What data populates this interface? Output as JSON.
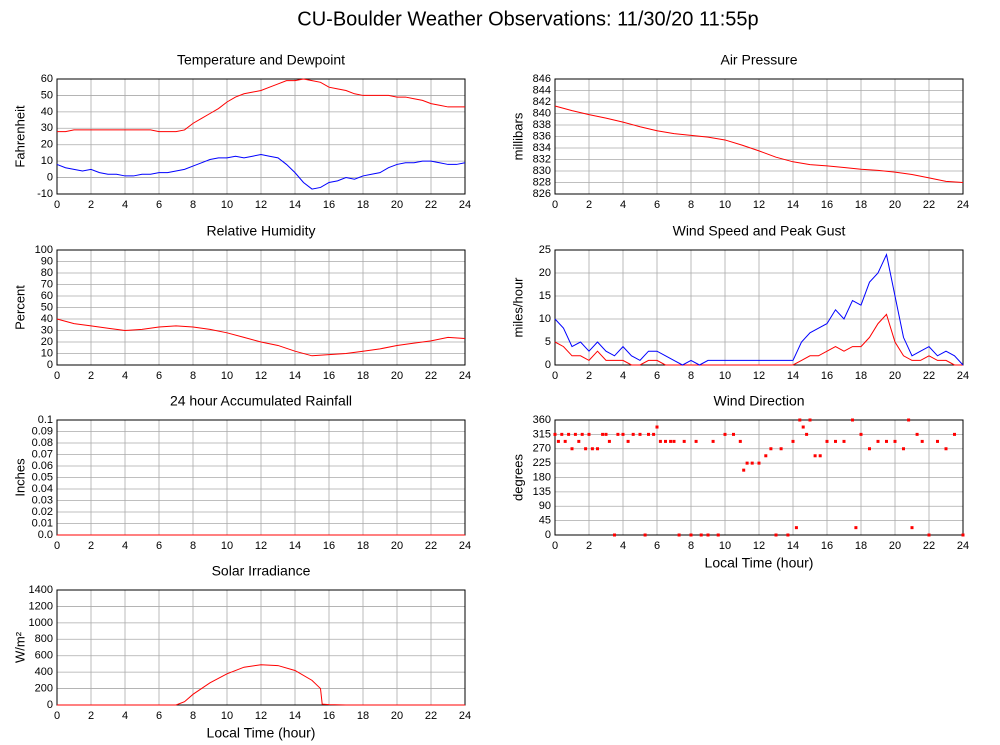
{
  "title": "CU-Boulder Weather Observations: 11/30/20 11:55p",
  "chart_data": [
    {
      "type": "line",
      "title": "Temperature and Dewpoint",
      "ylabel": "Fahrenheit",
      "x": [
        0,
        0.5,
        1,
        1.5,
        2,
        2.5,
        3,
        3.5,
        4,
        4.5,
        5,
        5.5,
        6,
        6.5,
        7,
        7.5,
        8,
        8.5,
        9,
        9.5,
        10,
        10.5,
        11,
        11.5,
        12,
        12.5,
        13,
        13.5,
        14,
        14.5,
        15,
        15.5,
        16,
        16.5,
        17,
        17.5,
        18,
        18.5,
        19,
        19.5,
        20,
        20.5,
        21,
        21.5,
        22,
        22.5,
        23,
        23.5,
        24
      ],
      "series": [
        {
          "color": "#ff0000",
          "values": [
            28,
            28,
            29,
            29,
            29,
            29,
            29,
            29,
            29,
            29,
            29,
            29,
            28,
            28,
            28,
            29,
            33,
            36,
            39,
            42,
            46,
            49,
            51,
            52,
            53,
            55,
            57,
            59,
            59,
            60,
            59,
            58,
            55,
            54,
            53,
            51,
            50,
            50,
            50,
            50,
            49,
            49,
            48,
            47,
            45,
            44,
            43,
            43,
            43
          ]
        },
        {
          "color": "#0000ff",
          "values": [
            8,
            6,
            5,
            4,
            5,
            3,
            2,
            2,
            1,
            1,
            2,
            2,
            3,
            3,
            4,
            5,
            7,
            9,
            11,
            12,
            12,
            13,
            12,
            13,
            14,
            13,
            12,
            8,
            3,
            -3,
            -7,
            -6,
            -3,
            -2,
            0,
            -1,
            1,
            2,
            3,
            6,
            8,
            9,
            9,
            10,
            10,
            9,
            8,
            8,
            9
          ]
        }
      ],
      "xlim": [
        0,
        24
      ],
      "xticks": [
        0,
        2,
        4,
        6,
        8,
        10,
        12,
        14,
        16,
        18,
        20,
        22,
        24
      ],
      "ylim": [
        -10,
        60
      ],
      "yticks": [
        -10,
        0,
        10,
        20,
        30,
        40,
        50,
        60
      ],
      "grid": true
    },
    {
      "type": "line",
      "title": "Air Pressure",
      "ylabel": "millibars",
      "x": [
        0,
        1,
        2,
        3,
        4,
        5,
        6,
        7,
        8,
        9,
        10,
        11,
        12,
        13,
        14,
        15,
        16,
        17,
        18,
        19,
        20,
        21,
        22,
        23,
        24
      ],
      "series": [
        {
          "color": "#ff0000",
          "values": [
            841.3,
            840.5,
            839.8,
            839.2,
            838.5,
            837.7,
            837,
            836.5,
            836.2,
            835.9,
            835.4,
            834.5,
            833.5,
            832.4,
            831.6,
            831.1,
            830.9,
            830.6,
            830.3,
            830.1,
            829.8,
            829.4,
            828.8,
            828.2,
            828
          ]
        }
      ],
      "xlim": [
        0,
        24
      ],
      "xticks": [
        0,
        2,
        4,
        6,
        8,
        10,
        12,
        14,
        16,
        18,
        20,
        22,
        24
      ],
      "ylim": [
        826,
        846
      ],
      "yticks": [
        826,
        828,
        830,
        832,
        834,
        836,
        838,
        840,
        842,
        844,
        846
      ],
      "grid": true
    },
    {
      "type": "line",
      "title": "Relative Humidity",
      "ylabel": "Percent",
      "x": [
        0,
        1,
        2,
        3,
        4,
        5,
        6,
        7,
        8,
        9,
        10,
        11,
        12,
        13,
        14,
        15,
        16,
        17,
        18,
        19,
        20,
        21,
        22,
        23,
        24
      ],
      "series": [
        {
          "color": "#ff0000",
          "values": [
            40,
            36,
            34,
            32,
            30,
            31,
            33,
            34,
            33,
            31,
            28,
            24,
            20,
            17,
            12,
            8,
            9,
            10,
            12,
            14,
            17,
            19,
            21,
            24,
            23
          ]
        }
      ],
      "xlim": [
        0,
        24
      ],
      "xticks": [
        0,
        2,
        4,
        6,
        8,
        10,
        12,
        14,
        16,
        18,
        20,
        22,
        24
      ],
      "ylim": [
        0,
        100
      ],
      "yticks": [
        0,
        10,
        20,
        30,
        40,
        50,
        60,
        70,
        80,
        90,
        100
      ],
      "grid": true
    },
    {
      "type": "line",
      "title": "Wind Speed and Peak Gust",
      "ylabel": "miles/hour",
      "x": [
        0,
        0.5,
        1,
        1.5,
        2,
        2.5,
        3,
        3.5,
        4,
        4.5,
        5,
        5.5,
        6,
        6.5,
        7,
        7.5,
        8,
        8.5,
        9,
        9.5,
        10,
        10.5,
        11,
        11.5,
        12,
        12.5,
        13,
        13.5,
        14,
        14.5,
        15,
        15.5,
        16,
        16.5,
        17,
        17.5,
        18,
        18.5,
        19,
        19.5,
        20,
        20.5,
        21,
        21.5,
        22,
        22.5,
        23,
        23.5,
        24
      ],
      "series": [
        {
          "color": "#ff0000",
          "values": [
            5,
            4,
            2,
            2,
            1,
            3,
            1,
            1,
            1,
            0,
            0,
            1,
            1,
            0,
            0,
            0,
            0,
            0,
            0,
            0,
            0,
            0,
            0,
            0,
            0,
            0,
            0,
            0,
            0,
            1,
            2,
            2,
            3,
            4,
            3,
            4,
            4,
            6,
            9,
            11,
            5,
            2,
            1,
            1,
            2,
            1,
            1,
            0,
            0
          ]
        },
        {
          "color": "#0000ff",
          "values": [
            10,
            8,
            4,
            5,
            3,
            5,
            3,
            2,
            4,
            2,
            1,
            3,
            3,
            2,
            1,
            0,
            1,
            0,
            1,
            1,
            1,
            1,
            1,
            1,
            1,
            1,
            1,
            1,
            1,
            5,
            7,
            8,
            9,
            12,
            10,
            14,
            13,
            18,
            20,
            24,
            15,
            6,
            2,
            3,
            4,
            2,
            3,
            2,
            0
          ]
        }
      ],
      "xlim": [
        0,
        24
      ],
      "xticks": [
        0,
        2,
        4,
        6,
        8,
        10,
        12,
        14,
        16,
        18,
        20,
        22,
        24
      ],
      "ylim": [
        0,
        25
      ],
      "yticks": [
        0,
        5,
        10,
        15,
        20,
        25
      ],
      "grid": true
    },
    {
      "type": "line",
      "title": "24 hour Accumulated Rainfall",
      "ylabel": "Inches",
      "x": [
        0,
        24
      ],
      "series": [
        {
          "color": "#ff0000",
          "values": [
            0,
            0
          ]
        }
      ],
      "xlim": [
        0,
        24
      ],
      "xticks": [
        0,
        2,
        4,
        6,
        8,
        10,
        12,
        14,
        16,
        18,
        20,
        22,
        24
      ],
      "ylim": [
        0,
        0.1
      ],
      "yticks": [
        {
          "value": 0,
          "label": "0.0"
        },
        0.01,
        0.02,
        0.03,
        0.04,
        0.05,
        0.06,
        0.07,
        0.08,
        0.09,
        0.1
      ],
      "grid": true
    },
    {
      "type": "scatter",
      "title": "Wind Direction",
      "ylabel": "degrees",
      "xlabel": "Local Time (hour)",
      "x": [
        0,
        0.2,
        0.4,
        0.6,
        0.8,
        1,
        1.2,
        1.4,
        1.6,
        1.8,
        2,
        2.2,
        2.5,
        2.8,
        3,
        3.2,
        3.5,
        3.7,
        4,
        4.3,
        4.6,
        5,
        5.3,
        5.5,
        5.8,
        6,
        6.2,
        6.5,
        6.8,
        7,
        7.3,
        7.6,
        8,
        8.3,
        8.6,
        9,
        9.3,
        9.6,
        10,
        10.5,
        10.9,
        11.1,
        11.3,
        11.6,
        12,
        12.4,
        12.7,
        13,
        13.3,
        13.7,
        14,
        14.2,
        14.4,
        14.6,
        14.8,
        15,
        15.3,
        15.6,
        16,
        16.5,
        17,
        17.5,
        17.7,
        18,
        18.5,
        19,
        19.5,
        20,
        20.5,
        20.8,
        21,
        21.3,
        21.6,
        22,
        22.5,
        23,
        23.5,
        24
      ],
      "series": [
        {
          "color": "#ff0000",
          "values": [
            315,
            293,
            315,
            293,
            315,
            270,
            315,
            293,
            315,
            270,
            315,
            270,
            270,
            315,
            315,
            293,
            0,
            315,
            315,
            293,
            315,
            315,
            0,
            315,
            315,
            338,
            293,
            293,
            293,
            293,
            0,
            293,
            0,
            293,
            0,
            0,
            293,
            0,
            315,
            315,
            293,
            203,
            225,
            225,
            225,
            248,
            270,
            0,
            270,
            0,
            293,
            23,
            360,
            338,
            315,
            360,
            248,
            248,
            293,
            293,
            293,
            360,
            23,
            315,
            270,
            293,
            293,
            293,
            270,
            360,
            23,
            315,
            293,
            0,
            293,
            270,
            315,
            0
          ]
        }
      ],
      "xlim": [
        0,
        24
      ],
      "xticks": [
        0,
        2,
        4,
        6,
        8,
        10,
        12,
        14,
        16,
        18,
        20,
        22,
        24
      ],
      "ylim": [
        0,
        360
      ],
      "yticks": [
        0,
        45,
        90,
        135,
        180,
        225,
        270,
        315,
        360
      ],
      "grid": true
    },
    {
      "type": "line",
      "title": "Solar Irradiance",
      "ylabel": "W/m²",
      "xlabel": "Local Time (hour)",
      "x": [
        0,
        7,
        7.5,
        8,
        9,
        10,
        11,
        12,
        13,
        14,
        15,
        15.5,
        15.6,
        16,
        17,
        24
      ],
      "series": [
        {
          "color": "#ff0000",
          "values": [
            0,
            0,
            40,
            130,
            270,
            380,
            460,
            490,
            480,
            420,
            300,
            200,
            10,
            5,
            0,
            0
          ]
        }
      ],
      "xlim": [
        0,
        24
      ],
      "xticks": [
        0,
        2,
        4,
        6,
        8,
        10,
        12,
        14,
        16,
        18,
        20,
        22,
        24
      ],
      "ylim": [
        0,
        1400
      ],
      "yticks": [
        0,
        200,
        400,
        600,
        800,
        1000,
        1200,
        1400
      ],
      "grid": true
    }
  ]
}
